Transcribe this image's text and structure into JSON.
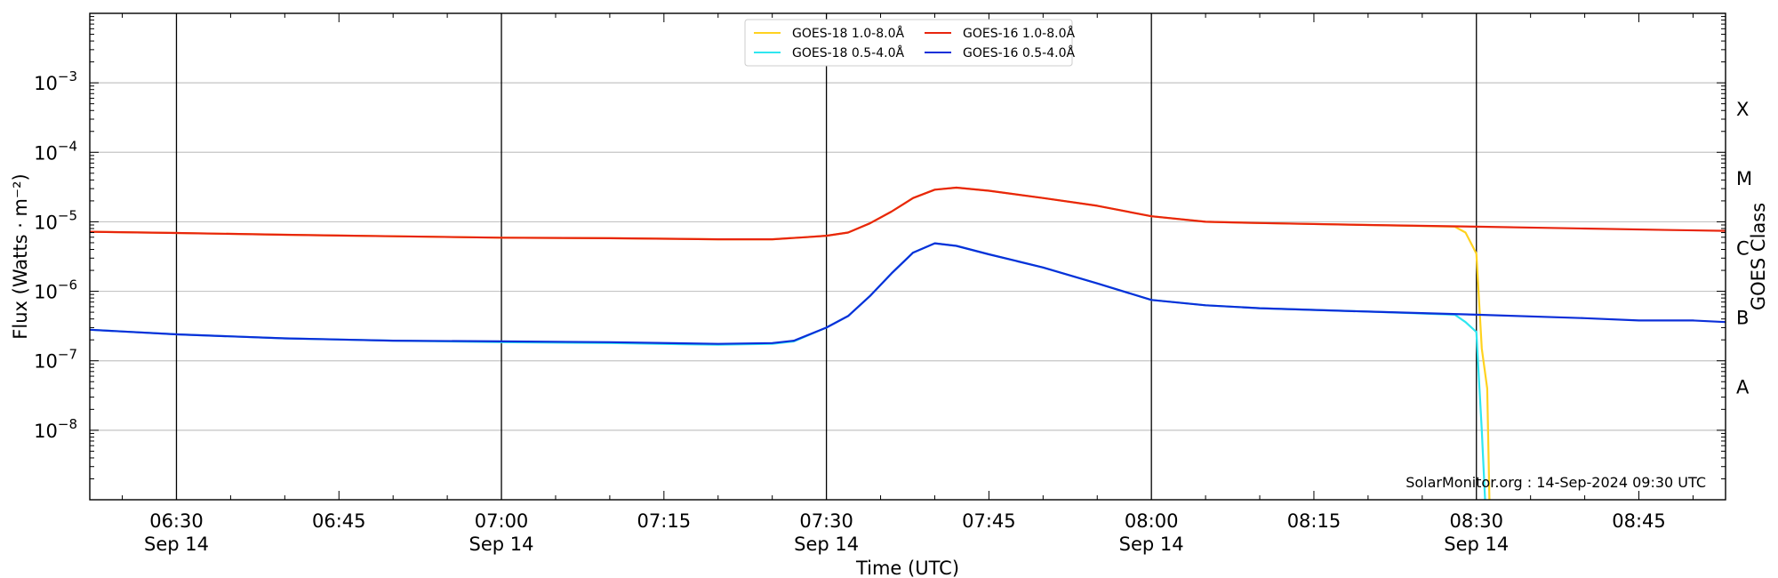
{
  "chart_data": {
    "type": "line",
    "title": "",
    "xlabel": "Time (UTC)",
    "ylabel": "Flux (Watts · m⁻²)",
    "y2label": "GOES Class",
    "yscale": "log",
    "ylim": [
      1e-09,
      0.01
    ],
    "xlim": [
      "06:22",
      "08:53"
    ],
    "grid": true,
    "legend_position": "top-center",
    "watermark": "SolarMonitor.org : 14-Sep-2024 09:30 UTC",
    "x_ticks": [
      {
        "time": "06:30",
        "label": "06:30",
        "date": "Sep 14",
        "major": true
      },
      {
        "time": "06:45",
        "label": "06:45",
        "date": "",
        "major": false
      },
      {
        "time": "07:00",
        "label": "07:00",
        "date": "Sep 14",
        "major": true
      },
      {
        "time": "07:15",
        "label": "07:15",
        "date": "",
        "major": false
      },
      {
        "time": "07:30",
        "label": "07:30",
        "date": "Sep 14",
        "major": true
      },
      {
        "time": "07:45",
        "label": "07:45",
        "date": "",
        "major": false
      },
      {
        "time": "08:00",
        "label": "08:00",
        "date": "Sep 14",
        "major": true
      },
      {
        "time": "08:15",
        "label": "08:15",
        "date": "",
        "major": false
      },
      {
        "time": "08:30",
        "label": "08:30",
        "date": "Sep 14",
        "major": true
      },
      {
        "time": "08:45",
        "label": "08:45",
        "date": "",
        "major": false
      }
    ],
    "y_ticks": [
      {
        "value": 1e-08,
        "base": "10",
        "exp": "−8"
      },
      {
        "value": 1e-07,
        "base": "10",
        "exp": "−7"
      },
      {
        "value": 1e-06,
        "base": "10",
        "exp": "−6"
      },
      {
        "value": 1e-05,
        "base": "10",
        "exp": "−5"
      },
      {
        "value": 0.0001,
        "base": "10",
        "exp": "−4"
      },
      {
        "value": 0.001,
        "base": "10",
        "exp": "−3"
      }
    ],
    "goes_classes": [
      {
        "label": "A",
        "value": 3e-08
      },
      {
        "label": "B",
        "value": 3e-07
      },
      {
        "label": "C",
        "value": 3e-06
      },
      {
        "label": "M",
        "value": 3e-05
      },
      {
        "label": "X",
        "value": 0.0003
      }
    ],
    "series": [
      {
        "name": "GOES-18 1.0-8.0Å",
        "color": "#ffd21f",
        "points": [
          [
            "06:22",
            7.2e-06
          ],
          [
            "06:30",
            6.9e-06
          ],
          [
            "06:40",
            6.5e-06
          ],
          [
            "06:50",
            6.2e-06
          ],
          [
            "07:00",
            5.9e-06
          ],
          [
            "07:10",
            5.8e-06
          ],
          [
            "07:20",
            5.6e-06
          ],
          [
            "07:25",
            5.6e-06
          ],
          [
            "07:28",
            6e-06
          ],
          [
            "07:30",
            6.3e-06
          ],
          [
            "07:32",
            7e-06
          ],
          [
            "07:34",
            9.5e-06
          ],
          [
            "07:36",
            1.4e-05
          ],
          [
            "07:38",
            2.2e-05
          ],
          [
            "07:40",
            2.9e-05
          ],
          [
            "07:42",
            3.1e-05
          ],
          [
            "07:45",
            2.8e-05
          ],
          [
            "07:50",
            2.2e-05
          ],
          [
            "07:55",
            1.7e-05
          ],
          [
            "08:00",
            1.2e-05
          ],
          [
            "08:05",
            1e-05
          ],
          [
            "08:10",
            9.6e-06
          ],
          [
            "08:20",
            9e-06
          ],
          [
            "08:28",
            8.5e-06
          ],
          [
            "08:29",
            7e-06
          ],
          [
            "08:30",
            3.5e-06
          ],
          [
            "08:30.5",
            1.5e-07
          ],
          [
            "08:31",
            4e-08
          ],
          [
            "08:31.2",
            1e-09
          ]
        ]
      },
      {
        "name": "GOES-16 1.0-8.0Å",
        "color": "#e8250e",
        "points": [
          [
            "06:22",
            7.2e-06
          ],
          [
            "06:30",
            6.9e-06
          ],
          [
            "06:40",
            6.5e-06
          ],
          [
            "06:50",
            6.2e-06
          ],
          [
            "07:00",
            5.9e-06
          ],
          [
            "07:10",
            5.8e-06
          ],
          [
            "07:20",
            5.6e-06
          ],
          [
            "07:25",
            5.6e-06
          ],
          [
            "07:28",
            6e-06
          ],
          [
            "07:30",
            6.3e-06
          ],
          [
            "07:32",
            7e-06
          ],
          [
            "07:34",
            9.5e-06
          ],
          [
            "07:36",
            1.4e-05
          ],
          [
            "07:38",
            2.2e-05
          ],
          [
            "07:40",
            2.9e-05
          ],
          [
            "07:42",
            3.1e-05
          ],
          [
            "07:45",
            2.8e-05
          ],
          [
            "07:50",
            2.2e-05
          ],
          [
            "07:55",
            1.7e-05
          ],
          [
            "08:00",
            1.2e-05
          ],
          [
            "08:05",
            1e-05
          ],
          [
            "08:10",
            9.6e-06
          ],
          [
            "08:20",
            9e-06
          ],
          [
            "08:30",
            8.5e-06
          ],
          [
            "08:40",
            8e-06
          ],
          [
            "08:48",
            7.6e-06
          ],
          [
            "08:53",
            7.4e-06
          ]
        ]
      },
      {
        "name": "GOES-18 0.5-4.0Å",
        "color": "#2ee6f0",
        "points": [
          [
            "06:22",
            2.8e-07
          ],
          [
            "06:30",
            2.4e-07
          ],
          [
            "06:40",
            2.1e-07
          ],
          [
            "06:50",
            1.95e-07
          ],
          [
            "07:00",
            1.85e-07
          ],
          [
            "07:10",
            1.8e-07
          ],
          [
            "07:20",
            1.7e-07
          ],
          [
            "07:25",
            1.75e-07
          ],
          [
            "07:27",
            1.9e-07
          ],
          [
            "07:30",
            3e-07
          ],
          [
            "07:32",
            4.4e-07
          ],
          [
            "07:34",
            8.5e-07
          ],
          [
            "07:36",
            1.8e-06
          ],
          [
            "07:38",
            3.6e-06
          ],
          [
            "07:40",
            4.9e-06
          ],
          [
            "07:42",
            4.5e-06
          ],
          [
            "07:45",
            3.4e-06
          ],
          [
            "07:50",
            2.2e-06
          ],
          [
            "07:55",
            1.3e-06
          ],
          [
            "08:00",
            7.5e-07
          ],
          [
            "08:05",
            6.3e-07
          ],
          [
            "08:10",
            5.7e-07
          ],
          [
            "08:20",
            5.1e-07
          ],
          [
            "08:28",
            4.6e-07
          ],
          [
            "08:29",
            3.6e-07
          ],
          [
            "08:30",
            2.6e-07
          ],
          [
            "08:30.5",
            1e-08
          ],
          [
            "08:30.8",
            1e-09
          ]
        ]
      },
      {
        "name": "GOES-16 0.5-4.0Å",
        "color": "#0b2fd9",
        "points": [
          [
            "06:22",
            2.8e-07
          ],
          [
            "06:30",
            2.4e-07
          ],
          [
            "06:40",
            2.1e-07
          ],
          [
            "06:50",
            1.95e-07
          ],
          [
            "07:00",
            1.9e-07
          ],
          [
            "07:10",
            1.85e-07
          ],
          [
            "07:20",
            1.75e-07
          ],
          [
            "07:25",
            1.8e-07
          ],
          [
            "07:27",
            1.95e-07
          ],
          [
            "07:30",
            3e-07
          ],
          [
            "07:32",
            4.4e-07
          ],
          [
            "07:34",
            8.5e-07
          ],
          [
            "07:36",
            1.8e-06
          ],
          [
            "07:38",
            3.6e-06
          ],
          [
            "07:40",
            4.9e-06
          ],
          [
            "07:42",
            4.5e-06
          ],
          [
            "07:45",
            3.4e-06
          ],
          [
            "07:50",
            2.2e-06
          ],
          [
            "07:55",
            1.3e-06
          ],
          [
            "08:00",
            7.5e-07
          ],
          [
            "08:05",
            6.3e-07
          ],
          [
            "08:10",
            5.7e-07
          ],
          [
            "08:20",
            5.1e-07
          ],
          [
            "08:30",
            4.6e-07
          ],
          [
            "08:40",
            4.1e-07
          ],
          [
            "08:45",
            3.8e-07
          ],
          [
            "08:50",
            3.8e-07
          ],
          [
            "08:53",
            3.6e-07
          ]
        ]
      }
    ],
    "legend": [
      {
        "label": "GOES-18 1.0-8.0Å",
        "color": "#ffd21f"
      },
      {
        "label": "GOES-18 0.5-4.0Å",
        "color": "#2ee6f0"
      },
      {
        "label": "GOES-16 1.0-8.0Å",
        "color": "#e8250e"
      },
      {
        "label": "GOES-16 0.5-4.0Å",
        "color": "#0b2fd9"
      }
    ]
  }
}
